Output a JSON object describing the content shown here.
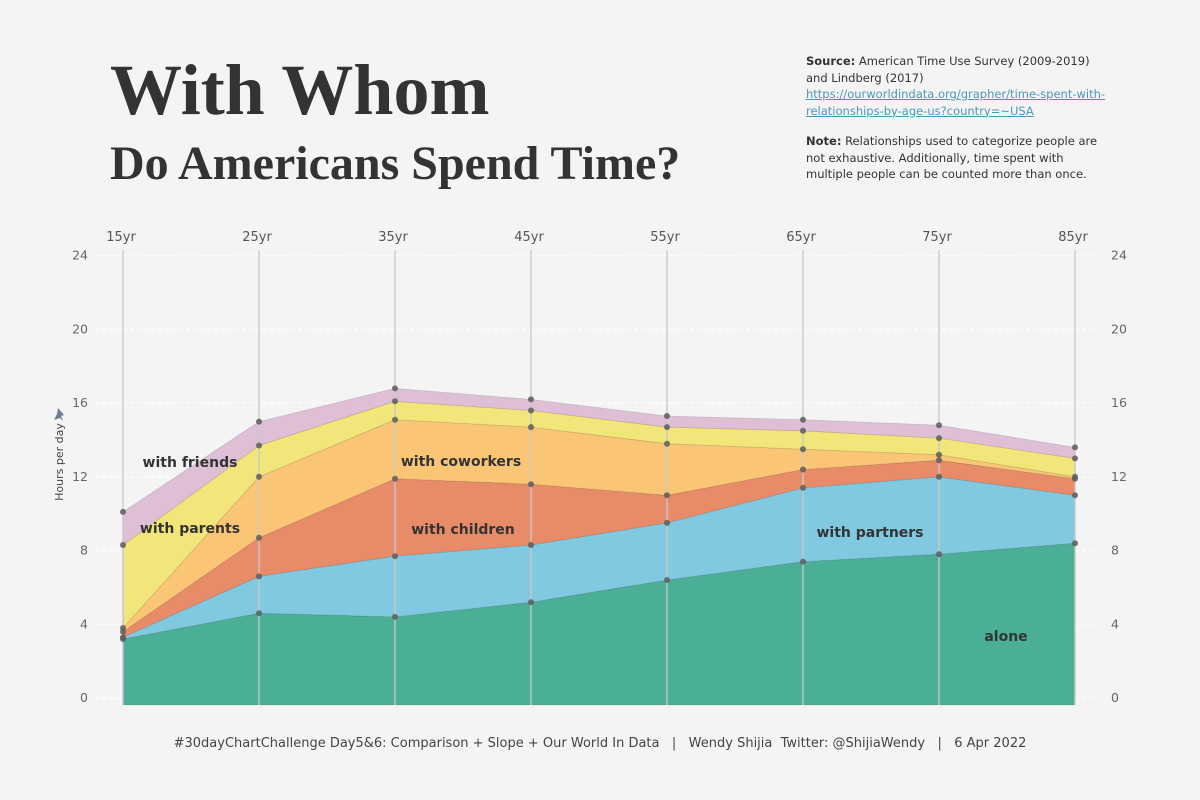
{
  "title": "With Whom",
  "subtitle": "Do Americans Spend Time?",
  "source": {
    "label": "Source:",
    "text": "American Time Use Survey (2009-2019) and Lindberg (2017)",
    "link": "https://ourworldindata.org/grapher/time-spent-with-relationships-by-age-us?country=~USA"
  },
  "note": {
    "label": "Note:",
    "text": "Relationships used to categorize people are not exhaustive. Additionally, time spent with multiple people can be counted more than once."
  },
  "footer": {
    "challenge": "#30dayChartChallenge Day5&6: Comparison + Slope + Our World In Data",
    "author": "Wendy Shijia  Twitter: @ShijiaWendy",
    "date": "6 Apr 2022"
  },
  "colors": {
    "alone": "#4baf97",
    "with partners": "#80c9e1",
    "with children": "#e88b68",
    "with coworkers": "#fac675",
    "with parents": "#f2e57a",
    "with friends": "#dfbfd5",
    "background": "#f4f4f4",
    "point": "#5c5c5c",
    "vline": "#c9c9c9"
  },
  "icons": {
    "ylabel_marker": "pin-icon"
  },
  "chart_data": {
    "type": "area",
    "stacked": true,
    "ylabel": "Hours per day",
    "ylim": [
      0,
      24
    ],
    "yticks": [
      0,
      4,
      8,
      12,
      16,
      20,
      24
    ],
    "grid": "dashed horizontal",
    "x": [
      "15yr",
      "25yr",
      "35yr",
      "45yr",
      "55yr",
      "65yr",
      "75yr",
      "85yr"
    ],
    "series": [
      {
        "name": "alone",
        "values": [
          3.2,
          4.6,
          4.4,
          5.2,
          6.4,
          7.4,
          7.8,
          8.4
        ]
      },
      {
        "name": "with partners",
        "values": [
          0.1,
          2.0,
          3.3,
          3.1,
          3.1,
          4.0,
          4.2,
          2.6
        ]
      },
      {
        "name": "with children",
        "values": [
          0.3,
          2.1,
          4.2,
          3.3,
          1.5,
          1.0,
          0.9,
          0.9
        ]
      },
      {
        "name": "with coworkers",
        "values": [
          0.2,
          3.3,
          3.2,
          3.1,
          2.8,
          1.1,
          0.3,
          0.1
        ]
      },
      {
        "name": "with parents",
        "values": [
          4.5,
          1.7,
          1.0,
          0.9,
          0.9,
          1.0,
          0.9,
          1.0
        ]
      },
      {
        "name": "with friends",
        "values": [
          1.8,
          1.3,
          0.7,
          0.6,
          0.6,
          0.6,
          0.7,
          0.6
        ]
      }
    ]
  }
}
